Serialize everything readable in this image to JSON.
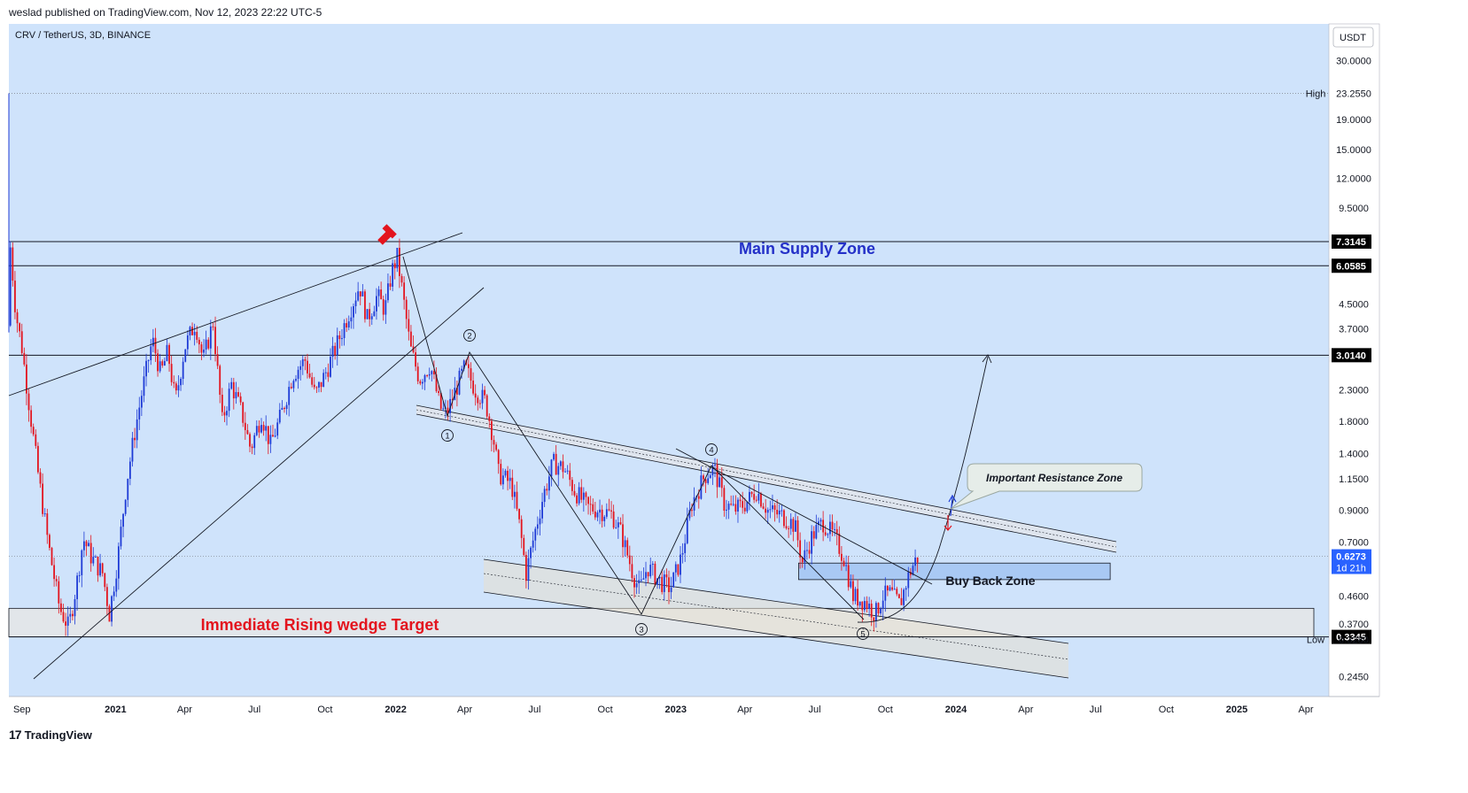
{
  "header": {
    "published": "weslad published on TradingView.com, Nov 12, 2023 22:22 UTC-5"
  },
  "symbol": "CRV / TetherUS, 3D, BINANCE",
  "branding": {
    "logo_text": "TradingView",
    "logo_mark": "17"
  },
  "colors": {
    "background": "#cfe3fb",
    "up": "#1e3bd6",
    "down": "#e3141e",
    "price_tag": "#2962ff",
    "supply_text": "#2430c8",
    "target_text": "#e3141e"
  },
  "chart_data": {
    "type": "candlestick",
    "scale": "log",
    "ylim": [
      0.21,
      40.0
    ],
    "xlim": [
      "2020-08-15",
      "2025-05-01"
    ],
    "currency_label": "USDT",
    "y_ticks": [
      "30.0000",
      "19.0000",
      "15.0000",
      "12.0000",
      "9.5000",
      "4.5000",
      "3.7000",
      "2.3000",
      "1.8000",
      "1.4000",
      "1.1500",
      "0.9000",
      "0.7000",
      "0.4600",
      "0.3700",
      "0.2450"
    ],
    "x_ticks": [
      {
        "label": "Sep",
        "date": "2020-09-01",
        "bold": false
      },
      {
        "label": "2021",
        "date": "2021-01-01",
        "bold": true
      },
      {
        "label": "Apr",
        "date": "2021-04-01",
        "bold": false
      },
      {
        "label": "Jul",
        "date": "2021-07-01",
        "bold": false
      },
      {
        "label": "Oct",
        "date": "2021-10-01",
        "bold": false
      },
      {
        "label": "2022",
        "date": "2022-01-01",
        "bold": true
      },
      {
        "label": "Apr",
        "date": "2022-04-01",
        "bold": false
      },
      {
        "label": "Jul",
        "date": "2022-07-01",
        "bold": false
      },
      {
        "label": "Oct",
        "date": "2022-10-01",
        "bold": false
      },
      {
        "label": "2023",
        "date": "2023-01-01",
        "bold": true
      },
      {
        "label": "Apr",
        "date": "2023-04-01",
        "bold": false
      },
      {
        "label": "Jul",
        "date": "2023-07-01",
        "bold": false
      },
      {
        "label": "Oct",
        "date": "2023-10-01",
        "bold": false
      },
      {
        "label": "2024",
        "date": "2024-01-01",
        "bold": true
      },
      {
        "label": "Apr",
        "date": "2024-04-01",
        "bold": false
      },
      {
        "label": "Jul",
        "date": "2024-07-01",
        "bold": false
      },
      {
        "label": "Oct",
        "date": "2024-10-01",
        "bold": false
      },
      {
        "label": "2025",
        "date": "2025-01-01",
        "bold": true
      },
      {
        "label": "Apr",
        "date": "2025-04-01",
        "bold": false
      }
    ],
    "high": {
      "label": "High",
      "value": "23.2550"
    },
    "low": {
      "label": "Low",
      "value": "0.3280"
    },
    "last_price": {
      "value": "0.6273",
      "countdown": "1d 21h"
    },
    "levels": [
      {
        "value": "7.3145"
      },
      {
        "value": "6.0585"
      },
      {
        "value": "3.0140"
      },
      {
        "value": "0.3345"
      }
    ],
    "price_path": [
      [
        "2020-08-14",
        3.8
      ],
      [
        "2020-08-15",
        23.0
      ],
      [
        "2020-08-17",
        7.0
      ],
      [
        "2020-08-24",
        4.2
      ],
      [
        "2020-09-01",
        3.2
      ],
      [
        "2020-09-12",
        1.9
      ],
      [
        "2020-09-22",
        1.2
      ],
      [
        "2020-10-05",
        0.7
      ],
      [
        "2020-10-20",
        0.42
      ],
      [
        "2020-11-01",
        0.36
      ],
      [
        "2020-11-12",
        0.52
      ],
      [
        "2020-11-20",
        0.72
      ],
      [
        "2020-12-01",
        0.62
      ],
      [
        "2020-12-15",
        0.55
      ],
      [
        "2020-12-24",
        0.4
      ],
      [
        "2021-01-04",
        0.62
      ],
      [
        "2021-01-15",
        1.1
      ],
      [
        "2021-01-25",
        1.6
      ],
      [
        "2021-02-05",
        2.3
      ],
      [
        "2021-02-18",
        3.4
      ],
      [
        "2021-03-01",
        2.6
      ],
      [
        "2021-03-10",
        3.1
      ],
      [
        "2021-03-20",
        2.1
      ],
      [
        "2021-04-01",
        3.2
      ],
      [
        "2021-04-15",
        3.9
      ],
      [
        "2021-04-25",
        2.9
      ],
      [
        "2021-05-08",
        3.9
      ],
      [
        "2021-05-20",
        1.8
      ],
      [
        "2021-06-01",
        2.4
      ],
      [
        "2021-06-15",
        1.9
      ],
      [
        "2021-06-26",
        1.45
      ],
      [
        "2021-07-10",
        1.9
      ],
      [
        "2021-07-22",
        1.5
      ],
      [
        "2021-08-05",
        1.9
      ],
      [
        "2021-08-20",
        2.6
      ],
      [
        "2021-09-05",
        2.9
      ],
      [
        "2021-09-18",
        2.2
      ],
      [
        "2021-10-01",
        2.6
      ],
      [
        "2021-10-15",
        3.2
      ],
      [
        "2021-11-01",
        4.2
      ],
      [
        "2021-11-15",
        5.2
      ],
      [
        "2021-11-25",
        4.0
      ],
      [
        "2021-12-08",
        4.8
      ],
      [
        "2021-12-18",
        4.3
      ],
      [
        "2021-12-27",
        5.8
      ],
      [
        "2022-01-03",
        6.5
      ],
      [
        "2022-01-10",
        4.9
      ],
      [
        "2022-01-20",
        3.2
      ],
      [
        "2022-02-01",
        2.5
      ],
      [
        "2022-02-15",
        2.8
      ],
      [
        "2022-02-28",
        2.0
      ],
      [
        "2022-03-08",
        1.9
      ],
      [
        "2022-03-20",
        2.3
      ],
      [
        "2022-04-01",
        2.75
      ],
      [
        "2022-04-15",
        2.3
      ],
      [
        "2022-04-28",
        2.1
      ],
      [
        "2022-05-08",
        1.6
      ],
      [
        "2022-05-15",
        1.2
      ],
      [
        "2022-06-01",
        1.1
      ],
      [
        "2022-06-12",
        0.78
      ],
      [
        "2022-06-20",
        0.55
      ],
      [
        "2022-07-01",
        0.75
      ],
      [
        "2022-07-12",
        1.0
      ],
      [
        "2022-07-25",
        1.3
      ],
      [
        "2022-08-08",
        1.25
      ],
      [
        "2022-08-22",
        1.05
      ],
      [
        "2022-09-08",
        0.92
      ],
      [
        "2022-09-25",
        0.9
      ],
      [
        "2022-10-10",
        0.87
      ],
      [
        "2022-10-22",
        0.75
      ],
      [
        "2022-11-06",
        0.55
      ],
      [
        "2022-11-15",
        0.48
      ],
      [
        "2022-11-25",
        0.58
      ],
      [
        "2022-12-10",
        0.52
      ],
      [
        "2022-12-25",
        0.49
      ],
      [
        "2023-01-08",
        0.62
      ],
      [
        "2023-01-22",
        0.95
      ],
      [
        "2023-02-08",
        1.18
      ],
      [
        "2023-02-20",
        1.25
      ],
      [
        "2023-03-05",
        0.95
      ],
      [
        "2023-03-18",
        0.9
      ],
      [
        "2023-04-02",
        0.95
      ],
      [
        "2023-04-16",
        1.05
      ],
      [
        "2023-05-01",
        0.9
      ],
      [
        "2023-05-20",
        0.86
      ],
      [
        "2023-06-05",
        0.8
      ],
      [
        "2023-06-15",
        0.6
      ],
      [
        "2023-06-28",
        0.74
      ],
      [
        "2023-07-12",
        0.82
      ],
      [
        "2023-07-28",
        0.72
      ],
      [
        "2023-08-08",
        0.62
      ],
      [
        "2023-08-20",
        0.46
      ],
      [
        "2023-09-05",
        0.44
      ],
      [
        "2023-09-18",
        0.4
      ],
      [
        "2023-09-28",
        0.46
      ],
      [
        "2023-10-08",
        0.47
      ],
      [
        "2023-10-20",
        0.43
      ],
      [
        "2023-10-30",
        0.53
      ],
      [
        "2023-11-08",
        0.6
      ],
      [
        "2023-11-13",
        0.627
      ]
    ],
    "annotations": {
      "supply_zone": "Main Supply Zone",
      "wedge_target": "Immediate Rising wedge Target",
      "buy_back_zone": "Buy Back Zone",
      "resistance_callout": "Important Resistance Zone",
      "wave_labels": [
        "1",
        "2",
        "3",
        "4",
        "5"
      ]
    }
  }
}
